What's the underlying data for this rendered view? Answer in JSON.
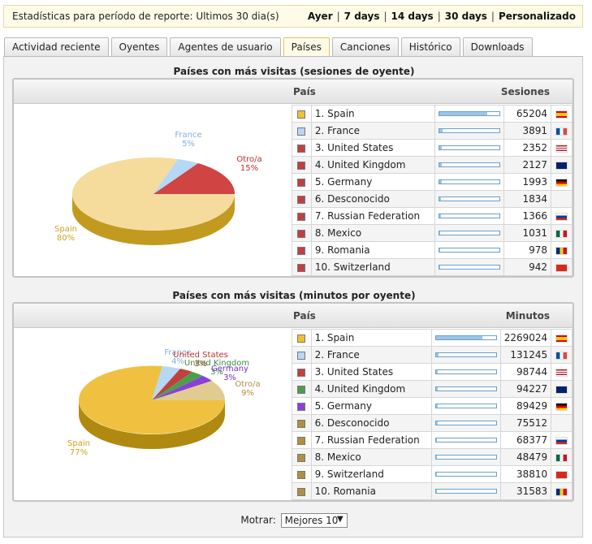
{
  "topbar": {
    "title": "Estadísticas para período de reporte: Ultimos 30 dia(s)",
    "ranges": [
      "Ayer",
      "7 days",
      "14 days",
      "30 days",
      "Personalizado"
    ]
  },
  "tabs": [
    "Actividad reciente",
    "Oyentes",
    "Agentes de usuario",
    "Países",
    "Canciones",
    "Histórico",
    "Downloads"
  ],
  "active_tab": "Países",
  "sessions": {
    "title": "Países con más visitas (sesiones de oyente)",
    "col_country": "País",
    "col_value": "Sesiones",
    "pie": [
      {
        "label": "Spain",
        "pct": "80%",
        "color": "#f5dc9c",
        "side": "#c29a20"
      },
      {
        "label": "France",
        "pct": "5%",
        "color": "#b5d8f5",
        "side": "#7fa8c8"
      },
      {
        "label": "Otro/a",
        "pct": "15%",
        "color": "#d04444",
        "side": "#9a2a2a"
      }
    ],
    "rows": [
      {
        "name": "1. Spain",
        "value": "65204",
        "fill": 0.8,
        "swatch": "#f0c030",
        "flag": "spain-flag-icon"
      },
      {
        "name": "2. France",
        "value": "3891",
        "fill": 0.05,
        "swatch": "#b5d8f5",
        "flag": "france-flag-icon"
      },
      {
        "name": "3. United States",
        "value": "2352",
        "fill": 0.03,
        "swatch": "#c04040",
        "flag": "usa-flag-icon"
      },
      {
        "name": "4. United Kingdom",
        "value": "2127",
        "fill": 0.03,
        "swatch": "#c04040",
        "flag": "uk-flag-icon"
      },
      {
        "name": "5. Germany",
        "value": "1993",
        "fill": 0.03,
        "swatch": "#c04040",
        "flag": "germany-flag-icon"
      },
      {
        "name": "6. Desconocido",
        "value": "1834",
        "fill": 0.02,
        "swatch": "#c04040",
        "flag": ""
      },
      {
        "name": "7. Russian Federation",
        "value": "1366",
        "fill": 0.02,
        "swatch": "#c04040",
        "flag": "russia-flag-icon"
      },
      {
        "name": "8. Mexico",
        "value": "1031",
        "fill": 0.01,
        "swatch": "#c04040",
        "flag": "mexico-flag-icon"
      },
      {
        "name": "9. Romania",
        "value": "978",
        "fill": 0.01,
        "swatch": "#c04040",
        "flag": "romania-flag-icon"
      },
      {
        "name": "10. Switzerland",
        "value": "942",
        "fill": 0.01,
        "swatch": "#c04040",
        "flag": "switzerland-flag-icon"
      }
    ]
  },
  "minutes": {
    "title": "Países con más visitas (minutos por oyente)",
    "col_country": "País",
    "col_value": "Minutos",
    "pie": [
      {
        "label": "Spain",
        "pct": "77%",
        "color": "#f0c040",
        "side": "#b08a10"
      },
      {
        "label": "France",
        "pct": "4%",
        "color": "#b5d8f5",
        "side": "#7fa8c8"
      },
      {
        "label": "United States",
        "pct": "3%",
        "color": "#c04040",
        "side": "#8a2a2a"
      },
      {
        "label": "United Kingdom",
        "pct": "3%",
        "color": "#4aa04a",
        "side": "#2e6e2e"
      },
      {
        "label": "Germany",
        "pct": "3%",
        "color": "#8a40d8",
        "side": "#5e2a98"
      },
      {
        "label": "Otro/a",
        "pct": "9%",
        "color": "#e0cc90",
        "side": "#a89050"
      }
    ],
    "rows": [
      {
        "name": "1. Spain",
        "value": "2269024",
        "fill": 0.77,
        "swatch": "#f0c030",
        "flag": "spain-flag-icon"
      },
      {
        "name": "2. France",
        "value": "131245",
        "fill": 0.04,
        "swatch": "#b5d8f5",
        "flag": "france-flag-icon"
      },
      {
        "name": "3. United States",
        "value": "98744",
        "fill": 0.03,
        "swatch": "#c04040",
        "flag": "usa-flag-icon"
      },
      {
        "name": "4. United Kingdom",
        "value": "94227",
        "fill": 0.03,
        "swatch": "#4aa04a",
        "flag": "uk-flag-icon"
      },
      {
        "name": "5. Germany",
        "value": "89429",
        "fill": 0.03,
        "swatch": "#8a40d8",
        "flag": "germany-flag-icon"
      },
      {
        "name": "6. Desconocido",
        "value": "75512",
        "fill": 0.03,
        "swatch": "#b09040",
        "flag": ""
      },
      {
        "name": "7. Russian Federation",
        "value": "68377",
        "fill": 0.02,
        "swatch": "#b09040",
        "flag": "russia-flag-icon"
      },
      {
        "name": "8. Mexico",
        "value": "48479",
        "fill": 0.02,
        "swatch": "#b09040",
        "flag": "mexico-flag-icon"
      },
      {
        "name": "9. Switzerland",
        "value": "38810",
        "fill": 0.01,
        "swatch": "#b09040",
        "flag": "switzerland-flag-icon"
      },
      {
        "name": "10. Romania",
        "value": "31583",
        "fill": 0.01,
        "swatch": "#b09040",
        "flag": "romania-flag-icon"
      }
    ]
  },
  "footer": {
    "label": "Motrar:",
    "select_value": "Mejores 10",
    "arrow": "▼"
  }
}
